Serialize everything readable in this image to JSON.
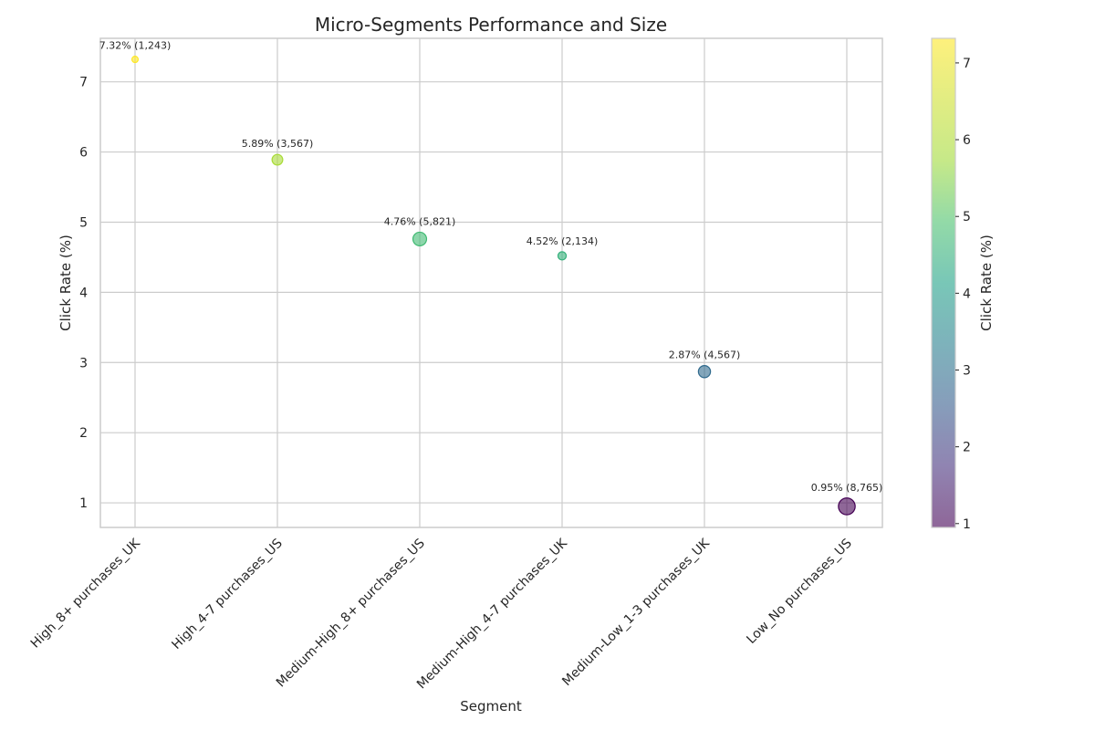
{
  "chart_data": {
    "type": "scatter",
    "title": "Micro-Segments Performance and Size",
    "xlabel": "Segment",
    "ylabel": "Click Rate (%)",
    "categories": [
      "High_8+ purchases_UK",
      "High_4-7 purchases_US",
      "Medium-High_8+ purchases_US",
      "Medium-High_4-7 purchases_UK",
      "Medium-Low_1-3 purchases_UK",
      "Low_No purchases_US"
    ],
    "values": [
      7.32,
      5.89,
      4.76,
      4.52,
      2.87,
      0.95
    ],
    "sizes": [
      1243,
      3567,
      5821,
      2134,
      4567,
      8765
    ],
    "point_labels": [
      "7.32% (1,243)",
      "5.89% (3,567)",
      "4.76% (5,821)",
      "4.52% (2,134)",
      "2.87% (4,567)",
      "0.95% (8,765)"
    ],
    "ylim": [
      0.65,
      7.62
    ],
    "yticks": [
      1,
      2,
      3,
      4,
      5,
      6,
      7
    ],
    "grid": true,
    "colormap": "viridis",
    "colorbar": {
      "label": "Click Rate (%)",
      "range": [
        0.95,
        7.32
      ],
      "ticks": [
        1,
        2,
        3,
        4,
        5,
        6,
        7
      ]
    }
  }
}
